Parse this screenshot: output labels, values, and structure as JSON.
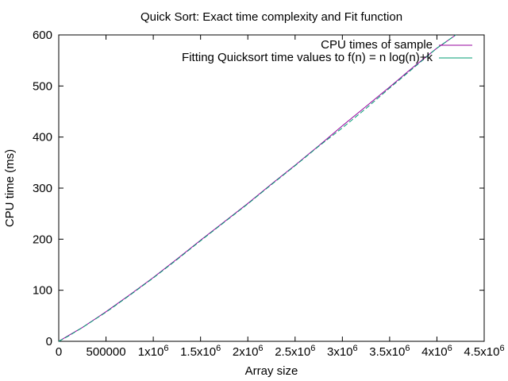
{
  "chart_data": {
    "type": "line",
    "title": "Quick Sort: Exact time complexity and Fit function",
    "xlabel": "Array size",
    "ylabel": "CPU time (ms)",
    "xlim": [
      0,
      4500000
    ],
    "ylim": [
      0,
      600
    ],
    "x_ticks": [
      {
        "value": 0,
        "mantissa": "0",
        "exp": ""
      },
      {
        "value": 500000,
        "mantissa": "500000",
        "exp": ""
      },
      {
        "value": 1000000,
        "mantissa": "1x10",
        "exp": "6"
      },
      {
        "value": 1500000,
        "mantissa": "1.5x10",
        "exp": "6"
      },
      {
        "value": 2000000,
        "mantissa": "2x10",
        "exp": "6"
      },
      {
        "value": 2500000,
        "mantissa": "2.5x10",
        "exp": "6"
      },
      {
        "value": 3000000,
        "mantissa": "3x10",
        "exp": "6"
      },
      {
        "value": 3500000,
        "mantissa": "3.5x10",
        "exp": "6"
      },
      {
        "value": 4000000,
        "mantissa": "4x10",
        "exp": "6"
      },
      {
        "value": 4500000,
        "mantissa": "4.5x10",
        "exp": "6"
      }
    ],
    "y_ticks": [
      "0",
      "100",
      "200",
      "300",
      "400",
      "500",
      "600"
    ],
    "legend_position": "top-right",
    "series": [
      {
        "name": "CPU times of sample",
        "color": "#94009e",
        "x": [
          0,
          100000,
          250000,
          500000,
          750000,
          1000000,
          1250000,
          1500000,
          1750000,
          2000000,
          2250000,
          2500000,
          2750000,
          3000000,
          3250000,
          3500000,
          3750000,
          4000000,
          4200000
        ],
        "y": [
          0,
          11,
          27,
          58,
          91,
          125,
          161,
          198,
          234,
          270,
          308,
          345,
          383,
          422,
          460,
          498,
          537,
          574,
          600
        ]
      },
      {
        "name": "Fitting Quicksort time values to f(n) = n log(n)+k",
        "color": "#009e73",
        "x": [
          0,
          100000,
          250000,
          500000,
          750000,
          1000000,
          1250000,
          1500000,
          1750000,
          2000000,
          2250000,
          2500000,
          2750000,
          3000000,
          3250000,
          3500000,
          3750000,
          4000000,
          4200000
        ],
        "y": [
          0,
          10,
          27,
          57,
          90,
          124,
          160,
          197,
          233,
          269,
          307,
          344,
          382,
          418,
          456,
          496,
          535,
          574,
          600
        ]
      }
    ]
  }
}
